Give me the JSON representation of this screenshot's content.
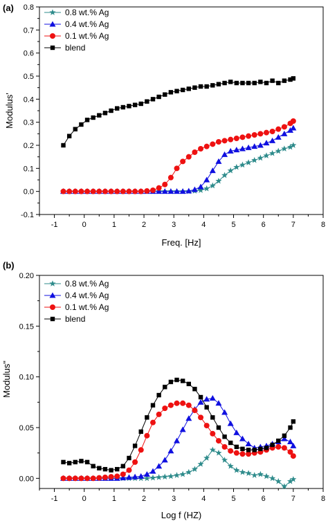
{
  "colors": {
    "ag08": "#2e8b8b",
    "ag04": "#1010e0",
    "ag01": "#ee1111",
    "blend": "#000000"
  },
  "chart_data": [
    {
      "panel_label": "(a)",
      "type": "line",
      "xlabel": "Freq. [Hz]",
      "ylabel": "Modulus'",
      "xlim": [
        -1.5,
        8
      ],
      "ylim": [
        -0.1,
        0.8
      ],
      "xticks": [
        -1,
        0,
        1,
        2,
        3,
        4,
        5,
        6,
        7,
        8
      ],
      "yticks": [
        -0.1,
        0.0,
        0.1,
        0.2,
        0.3,
        0.4,
        0.5,
        0.6,
        0.7,
        0.8
      ],
      "yticklabels": [
        "-0.1",
        "0.0",
        "0.1",
        "0.2",
        "0.3",
        "0.4",
        "0.5",
        "0.6",
        "0.7",
        "0.8"
      ],
      "legend": "top-left",
      "series": [
        {
          "name": "0.8 wt.% Ag",
          "marker": "star",
          "color": "#2e8b8b",
          "x": [
            -0.7,
            -0.5,
            -0.3,
            -0.1,
            0.1,
            0.3,
            0.5,
            0.7,
            0.9,
            1.1,
            1.3,
            1.5,
            1.7,
            1.9,
            2.1,
            2.3,
            2.5,
            2.7,
            2.9,
            3.1,
            3.3,
            3.5,
            3.7,
            3.9,
            4.1,
            4.3,
            4.5,
            4.7,
            4.9,
            5.1,
            5.3,
            5.5,
            5.7,
            5.9,
            6.1,
            6.3,
            6.5,
            6.7,
            6.9,
            7.0
          ],
          "y": [
            0.0,
            0.0,
            0.0,
            0.0,
            0.0,
            0.0,
            0.0,
            0.0,
            0.0,
            0.0,
            0.0,
            0.0,
            0.0,
            0.0,
            0.0,
            0.0,
            0.0,
            0.0,
            0.0,
            0.0,
            0.0,
            0.0,
            0.002,
            0.005,
            0.012,
            0.025,
            0.045,
            0.07,
            0.09,
            0.105,
            0.115,
            0.125,
            0.135,
            0.145,
            0.155,
            0.165,
            0.175,
            0.185,
            0.192,
            0.2
          ]
        },
        {
          "name": "0.4 wt.% Ag",
          "marker": "triangle",
          "color": "#1010e0",
          "x": [
            -0.7,
            -0.5,
            -0.3,
            -0.1,
            0.1,
            0.3,
            0.5,
            0.7,
            0.9,
            1.1,
            1.3,
            1.5,
            1.7,
            1.9,
            2.1,
            2.3,
            2.5,
            2.7,
            2.9,
            3.1,
            3.3,
            3.5,
            3.7,
            3.9,
            4.1,
            4.3,
            4.5,
            4.7,
            4.9,
            5.1,
            5.3,
            5.5,
            5.7,
            5.9,
            6.1,
            6.3,
            6.5,
            6.7,
            6.9,
            7.0
          ],
          "y": [
            0.0,
            0.0,
            0.0,
            0.0,
            0.0,
            0.0,
            0.0,
            0.0,
            0.0,
            0.0,
            0.0,
            0.0,
            0.0,
            0.0,
            0.0,
            0.0,
            0.0,
            0.0,
            0.0,
            0.0,
            0.0,
            0.002,
            0.008,
            0.02,
            0.05,
            0.09,
            0.13,
            0.16,
            0.175,
            0.18,
            0.185,
            0.19,
            0.195,
            0.2,
            0.21,
            0.22,
            0.235,
            0.25,
            0.265,
            0.275
          ]
        },
        {
          "name": "0.1 wt.% Ag",
          "marker": "circle",
          "color": "#ee1111",
          "x": [
            -0.7,
            -0.5,
            -0.3,
            -0.1,
            0.1,
            0.3,
            0.5,
            0.7,
            0.9,
            1.1,
            1.3,
            1.5,
            1.7,
            1.9,
            2.1,
            2.3,
            2.5,
            2.7,
            2.9,
            3.1,
            3.3,
            3.5,
            3.7,
            3.9,
            4.1,
            4.3,
            4.5,
            4.7,
            4.9,
            5.1,
            5.3,
            5.5,
            5.7,
            5.9,
            6.1,
            6.3,
            6.5,
            6.7,
            6.9,
            7.0
          ],
          "y": [
            0.0,
            0.0,
            0.0,
            0.0,
            0.0,
            0.0,
            0.0,
            0.0,
            0.0,
            0.0,
            0.0,
            0.0,
            0.0,
            0.0,
            0.002,
            0.005,
            0.015,
            0.03,
            0.06,
            0.1,
            0.13,
            0.15,
            0.17,
            0.185,
            0.195,
            0.205,
            0.215,
            0.22,
            0.225,
            0.23,
            0.235,
            0.24,
            0.245,
            0.25,
            0.255,
            0.26,
            0.27,
            0.28,
            0.295,
            0.305
          ]
        },
        {
          "name": "blend",
          "marker": "square",
          "color": "#000000",
          "x": [
            -0.7,
            -0.5,
            -0.3,
            -0.1,
            0.1,
            0.3,
            0.5,
            0.7,
            0.9,
            1.1,
            1.3,
            1.5,
            1.7,
            1.9,
            2.1,
            2.3,
            2.5,
            2.7,
            2.9,
            3.1,
            3.3,
            3.5,
            3.7,
            3.9,
            4.1,
            4.3,
            4.5,
            4.7,
            4.9,
            5.1,
            5.3,
            5.5,
            5.7,
            5.9,
            6.1,
            6.3,
            6.5,
            6.7,
            6.9,
            7.0
          ],
          "y": [
            0.2,
            0.24,
            0.27,
            0.29,
            0.31,
            0.32,
            0.33,
            0.34,
            0.35,
            0.36,
            0.365,
            0.37,
            0.375,
            0.38,
            0.39,
            0.4,
            0.41,
            0.42,
            0.43,
            0.435,
            0.44,
            0.445,
            0.45,
            0.455,
            0.455,
            0.46,
            0.465,
            0.47,
            0.475,
            0.47,
            0.47,
            0.47,
            0.47,
            0.475,
            0.47,
            0.48,
            0.47,
            0.48,
            0.485,
            0.49
          ]
        }
      ]
    },
    {
      "panel_label": "(b)",
      "type": "line",
      "xlabel": "Log f (HZ)",
      "ylabel": "Modulus\"",
      "xlim": [
        -1.5,
        8
      ],
      "ylim": [
        -0.01,
        0.2
      ],
      "xticks": [
        -1,
        0,
        1,
        2,
        3,
        4,
        5,
        6,
        7,
        8
      ],
      "yticks": [
        0.0,
        0.05,
        0.1,
        0.15,
        0.2
      ],
      "yticklabels": [
        "0.00",
        "0.05",
        "0.10",
        "0.15",
        "0.20"
      ],
      "legend": "top-left",
      "series": [
        {
          "name": "0.8 wt.% Ag",
          "marker": "star",
          "color": "#2e8b8b",
          "x": [
            -0.7,
            -0.5,
            -0.3,
            -0.1,
            0.1,
            0.3,
            0.5,
            0.7,
            0.9,
            1.1,
            1.3,
            1.5,
            1.7,
            1.9,
            2.1,
            2.3,
            2.5,
            2.7,
            2.9,
            3.1,
            3.3,
            3.5,
            3.7,
            3.9,
            4.1,
            4.3,
            4.5,
            4.7,
            4.9,
            5.1,
            5.3,
            5.5,
            5.7,
            5.9,
            6.1,
            6.3,
            6.5,
            6.7,
            6.9,
            7.0
          ],
          "y": [
            0.0,
            0.0,
            0.0,
            0.0,
            0.0,
            0.0,
            0.0,
            0.0,
            0.0,
            0.0,
            0.0,
            0.0,
            0.0,
            0.0,
            0.0,
            0.0005,
            0.001,
            0.0015,
            0.002,
            0.003,
            0.004,
            0.006,
            0.009,
            0.014,
            0.02,
            0.028,
            0.025,
            0.018,
            0.012,
            0.008,
            0.006,
            0.005,
            0.003,
            0.004,
            0.002,
            0.0,
            -0.003,
            -0.008,
            -0.003,
            -0.001
          ]
        },
        {
          "name": "0.4 wt.% Ag",
          "marker": "triangle",
          "color": "#1010e0",
          "x": [
            -0.7,
            -0.5,
            -0.3,
            -0.1,
            0.1,
            0.3,
            0.5,
            0.7,
            0.9,
            1.1,
            1.3,
            1.5,
            1.7,
            1.9,
            2.1,
            2.3,
            2.5,
            2.7,
            2.9,
            3.1,
            3.3,
            3.5,
            3.7,
            3.9,
            4.1,
            4.3,
            4.5,
            4.7,
            4.9,
            5.1,
            5.3,
            5.5,
            5.7,
            5.9,
            6.1,
            6.3,
            6.5,
            6.7,
            6.9,
            7.0
          ],
          "y": [
            0.0,
            0.0,
            0.0,
            0.0,
            0.0,
            0.0,
            0.0,
            0.0,
            0.0,
            0.0,
            0.0005,
            0.001,
            0.0015,
            0.002,
            0.004,
            0.007,
            0.012,
            0.018,
            0.027,
            0.037,
            0.048,
            0.059,
            0.068,
            0.075,
            0.078,
            0.079,
            0.074,
            0.065,
            0.054,
            0.045,
            0.039,
            0.034,
            0.03,
            0.031,
            0.032,
            0.034,
            0.036,
            0.039,
            0.036,
            0.032
          ]
        },
        {
          "name": "0.1 wt.% Ag",
          "marker": "circle",
          "color": "#ee1111",
          "x": [
            -0.7,
            -0.5,
            -0.3,
            -0.1,
            0.1,
            0.3,
            0.5,
            0.7,
            0.9,
            1.1,
            1.3,
            1.5,
            1.7,
            1.9,
            2.1,
            2.3,
            2.5,
            2.7,
            2.9,
            3.1,
            3.3,
            3.5,
            3.7,
            3.9,
            4.1,
            4.3,
            4.5,
            4.7,
            4.9,
            5.1,
            5.3,
            5.5,
            5.7,
            5.9,
            6.1,
            6.3,
            6.5,
            6.7,
            6.9,
            7.0
          ],
          "y": [
            0.0,
            0.0,
            0.0,
            0.0,
            0.0,
            0.0,
            0.0005,
            0.001,
            0.0015,
            0.002,
            0.004,
            0.008,
            0.016,
            0.028,
            0.042,
            0.055,
            0.063,
            0.069,
            0.072,
            0.074,
            0.074,
            0.072,
            0.067,
            0.06,
            0.052,
            0.044,
            0.037,
            0.031,
            0.027,
            0.025,
            0.024,
            0.024,
            0.025,
            0.026,
            0.028,
            0.03,
            0.031,
            0.03,
            0.026,
            0.022
          ]
        },
        {
          "name": "blend",
          "marker": "square",
          "color": "#000000",
          "x": [
            -0.7,
            -0.5,
            -0.3,
            -0.1,
            0.1,
            0.3,
            0.5,
            0.7,
            0.9,
            1.1,
            1.3,
            1.5,
            1.7,
            1.9,
            2.1,
            2.3,
            2.5,
            2.7,
            2.9,
            3.1,
            3.3,
            3.5,
            3.7,
            3.9,
            4.1,
            4.3,
            4.5,
            4.7,
            4.9,
            5.1,
            5.3,
            5.5,
            5.7,
            5.9,
            6.1,
            6.3,
            6.5,
            6.7,
            6.9,
            7.0
          ],
          "y": [
            0.016,
            0.015,
            0.016,
            0.017,
            0.016,
            0.012,
            0.01,
            0.009,
            0.008,
            0.009,
            0.012,
            0.02,
            0.032,
            0.046,
            0.06,
            0.072,
            0.082,
            0.09,
            0.095,
            0.097,
            0.096,
            0.093,
            0.088,
            0.08,
            0.07,
            0.06,
            0.05,
            0.041,
            0.035,
            0.031,
            0.029,
            0.028,
            0.028,
            0.029,
            0.03,
            0.033,
            0.037,
            0.042,
            0.05,
            0.056
          ]
        }
      ]
    }
  ]
}
